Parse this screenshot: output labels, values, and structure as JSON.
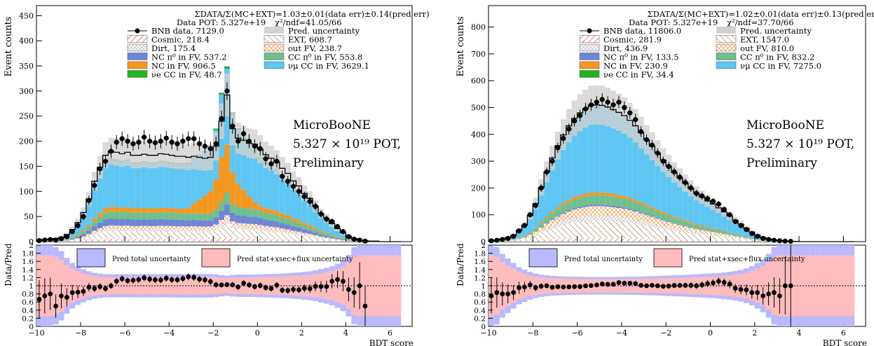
{
  "colors": {
    "bnb": "#000000",
    "cosmic": "#cc3333",
    "dirt": "#999999",
    "ncpi0": "#6f86d6",
    "ncfv": "#f5961e",
    "nue": "#22b322",
    "ext": "#8b5a2b",
    "outfv": "#f2a35e",
    "ccpi0": "#6fbf8f",
    "numu": "#5ec6f2",
    "unc_total": "#b9b9ff",
    "unc_stat": "#ffbcbc"
  },
  "chart_data": [
    {
      "type": "bar",
      "title": "ΣDATA/Σ(MC+EXT)=1.03±0.01(data err)±0.14(pred err)",
      "pot_label": "Data POT: 5.327e+19",
      "chi2_label": "χ²/ndf=41.05/66",
      "ylabel": "Event counts",
      "ylim": [
        0,
        470
      ],
      "yticks": [
        "0",
        "50",
        "100",
        "150",
        "200",
        "250",
        "300",
        "350",
        "400",
        "450"
      ],
      "legend": [
        {
          "label": "BNB data, 7129.0",
          "key": "bnb"
        },
        {
          "label": "Pred. uncertainty",
          "key": "pred"
        },
        {
          "label": "Cosmic, 218.4",
          "key": "cosmic"
        },
        {
          "label": "EXT, 608.7",
          "key": "ext"
        },
        {
          "label": "Dirt, 175.4",
          "key": "dirt"
        },
        {
          "label": "out FV, 238.7",
          "key": "outfv"
        },
        {
          "label": "NC π⁰ in FV, 537.2",
          "key": "ncpi0"
        },
        {
          "label": "CC π⁰ in FV, 553.8",
          "key": "ccpi0"
        },
        {
          "label": "NC in FV, 906.5",
          "key": "ncfv"
        },
        {
          "label": "νμ CC in FV, 3629.1",
          "key": "numu"
        },
        {
          "label": "νe CC in FV, 48.7",
          "key": "nue"
        }
      ],
      "annotation": [
        "MicroBooNE",
        "5.327 × 10¹⁹ POT,",
        "Preliminary"
      ],
      "x": [
        -9.875,
        -9.625,
        -9.375,
        -9.125,
        -8.875,
        -8.625,
        -8.375,
        -8.125,
        -7.875,
        -7.625,
        -7.375,
        -7.125,
        -6.875,
        -6.625,
        -6.375,
        -6.125,
        -5.875,
        -5.625,
        -5.375,
        -5.125,
        -4.875,
        -4.625,
        -4.375,
        -4.125,
        -3.875,
        -3.625,
        -3.375,
        -3.125,
        -2.875,
        -2.625,
        -2.375,
        -2.125,
        -1.875,
        -1.625,
        -1.375,
        -1.125,
        -0.875,
        -0.625,
        -0.375,
        -0.125,
        0.125,
        0.375,
        0.625,
        0.875,
        1.125,
        1.375,
        1.625,
        1.875,
        2.125,
        2.375,
        2.625,
        2.875,
        3.125,
        3.375,
        3.625,
        3.875,
        4.125,
        4.375,
        4.625,
        4.875,
        5.125,
        5.375,
        5.625,
        5.875,
        6.125,
        6.375
      ],
      "data": [
        2,
        3,
        4,
        3,
        6,
        10,
        20,
        32,
        50,
        82,
        112,
        145,
        160,
        180,
        198,
        205,
        200,
        195,
        198,
        208,
        200,
        197,
        200,
        206,
        198,
        195,
        200,
        205,
        205,
        195,
        190,
        185,
        195,
        245,
        300,
        230,
        200,
        215,
        200,
        190,
        185,
        165,
        155,
        160,
        130,
        120,
        110,
        100,
        90,
        80,
        70,
        55,
        45,
        40,
        30,
        20,
        10,
        5,
        3,
        1,
        0,
        0,
        0,
        0,
        0,
        0
      ],
      "pred": [
        3,
        4,
        5,
        6,
        8,
        14,
        24,
        38,
        58,
        85,
        120,
        148,
        172,
        180,
        178,
        175,
        178,
        172,
        172,
        174,
        172,
        172,
        175,
        174,
        172,
        170,
        170,
        168,
        170,
        168,
        166,
        168,
        190,
        240,
        292,
        225,
        206,
        202,
        196,
        194,
        184,
        173,
        166,
        158,
        146,
        136,
        121,
        111,
        96,
        86,
        71,
        56,
        46,
        36,
        26,
        18,
        11,
        6,
        3,
        2,
        1,
        1,
        0,
        0,
        0,
        0
      ],
      "ylim_ratio": [
        0,
        2
      ],
      "ratio_yticks": [
        "0",
        "0.2",
        "0.4",
        "0.6",
        "0.8",
        "1",
        "1.2",
        "1.4",
        "1.6",
        "1.8",
        "2"
      ],
      "ratio_legend": [
        "Pred total uncertainty",
        "Pred stat+xsec+flux uncertainty"
      ],
      "xlabel": "BDT score",
      "xlim": [
        -10,
        7
      ],
      "xticks": [
        "−10",
        "−8",
        "−6",
        "−4",
        "−2",
        "0",
        "2",
        "4",
        "6"
      ],
      "ratio_ylabel": "Data/Pred"
    },
    {
      "type": "bar",
      "title": "ΣDATA/Σ(MC+EXT)=1.02±0.01(data err)±0.13(pred err)",
      "pot_label": "Data POT: 5.327e+19",
      "chi2_label": "χ²/ndf=37.70/66",
      "ylabel": "Event counts",
      "ylim": [
        0,
        880
      ],
      "yticks": [
        "0",
        "100",
        "200",
        "300",
        "400",
        "500",
        "600",
        "700",
        "800"
      ],
      "legend": [
        {
          "label": "BNB data, 11806.0",
          "key": "bnb"
        },
        {
          "label": "Pred. uncertainty",
          "key": "pred"
        },
        {
          "label": "Cosmic, 281.9",
          "key": "cosmic"
        },
        {
          "label": "EXT, 1547.0",
          "key": "ext"
        },
        {
          "label": "Dirt, 436.9",
          "key": "dirt"
        },
        {
          "label": "out FV, 810.0",
          "key": "outfv"
        },
        {
          "label": "NC π⁰ in FV, 133.5",
          "key": "ncpi0"
        },
        {
          "label": "CC π⁰ in FV, 832.2",
          "key": "ccpi0"
        },
        {
          "label": "NC in FV, 230.9",
          "key": "ncfv"
        },
        {
          "label": "νμ CC in FV, 7275.0",
          "key": "numu"
        },
        {
          "label": "νe CC in FV, 34.4",
          "key": "nue"
        }
      ],
      "annotation": [
        "MicroBooNE",
        "5.327 × 10¹⁹ POT,",
        "Preliminary"
      ],
      "x": [
        -9.875,
        -9.625,
        -9.375,
        -9.125,
        -8.875,
        -8.625,
        -8.375,
        -8.125,
        -7.875,
        -7.625,
        -7.375,
        -7.125,
        -6.875,
        -6.625,
        -6.375,
        -6.125,
        -5.875,
        -5.625,
        -5.375,
        -5.125,
        -4.875,
        -4.625,
        -4.375,
        -4.125,
        -3.875,
        -3.625,
        -3.375,
        -3.125,
        -2.875,
        -2.625,
        -2.375,
        -2.125,
        -1.875,
        -1.625,
        -1.375,
        -1.125,
        -0.875,
        -0.625,
        -0.375,
        -0.125,
        0.125,
        0.375,
        0.625,
        0.875,
        1.125,
        1.375,
        1.625,
        1.875,
        2.125,
        2.375,
        2.625,
        2.875,
        3.125,
        3.375,
        3.625,
        3.875,
        4.125,
        4.375,
        4.625,
        4.875,
        5.125,
        5.375,
        5.625,
        5.875,
        6.125,
        6.375
      ],
      "data": [
        3,
        5,
        8,
        12,
        20,
        40,
        60,
        100,
        135,
        200,
        260,
        300,
        350,
        385,
        420,
        450,
        470,
        495,
        510,
        520,
        530,
        520,
        510,
        520,
        500,
        480,
        455,
        410,
        380,
        360,
        330,
        300,
        280,
        260,
        240,
        220,
        200,
        180,
        170,
        160,
        150,
        140,
        120,
        100,
        75,
        60,
        45,
        30,
        20,
        12,
        8,
        5,
        3,
        2,
        1,
        0,
        0,
        0,
        0,
        0,
        0,
        0,
        0,
        0,
        0,
        0
      ],
      "pred": [
        4,
        6,
        10,
        15,
        24,
        42,
        62,
        98,
        142,
        202,
        260,
        312,
        358,
        398,
        432,
        460,
        480,
        496,
        508,
        510,
        508,
        502,
        492,
        482,
        470,
        452,
        432,
        406,
        380,
        356,
        330,
        304,
        282,
        258,
        238,
        218,
        198,
        180,
        166,
        152,
        140,
        126,
        111,
        96,
        80,
        66,
        50,
        36,
        24,
        16,
        10,
        6,
        4,
        2,
        1,
        1,
        0,
        0,
        0,
        0,
        0,
        0,
        0,
        0,
        0,
        0
      ],
      "ylim_ratio": [
        0,
        2
      ],
      "ratio_yticks": [
        "0",
        "0.2",
        "0.4",
        "0.6",
        "0.8",
        "1",
        "1.2",
        "1.4",
        "1.6",
        "1.8",
        "2"
      ],
      "ratio_legend": [
        "Pred total uncertainty",
        "Pred stat+xsec+flux uncertainty"
      ],
      "xlabel": "BDT score",
      "xlim": [
        -10,
        7
      ],
      "xticks": [
        "−10",
        "−8",
        "−6",
        "−4",
        "−2",
        "0",
        "2",
        "4",
        "6"
      ],
      "ratio_ylabel": "Data/Pred"
    }
  ]
}
